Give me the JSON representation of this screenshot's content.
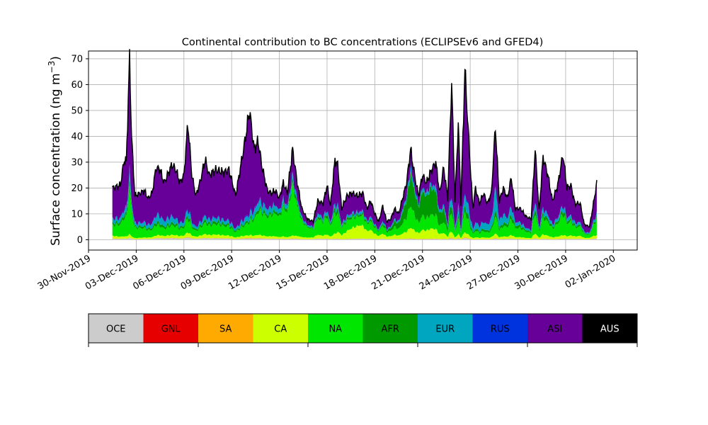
{
  "chart_data": {
    "type": "area",
    "stacked": true,
    "title": "Continental contribution to BC concentrations (ECLIPSEv6 and GFED4)",
    "ylabel_text": "Surface concentration (ng m",
    "ylabel_sup": "−3",
    "ylabel_close": ")",
    "xlabel": "",
    "x_start": "2019-12-01T12:00",
    "x_end": "2019-12-31T23:00",
    "xlim": [
      "2019-11-30T00:00",
      "2020-01-03T12:00"
    ],
    "ylim": [
      -4,
      73
    ],
    "yticks": [
      0,
      10,
      20,
      30,
      40,
      50,
      60,
      70
    ],
    "xticks": [
      "30-Nov-2019",
      "03-Dec-2019",
      "06-Dec-2019",
      "09-Dec-2019",
      "12-Dec-2019",
      "15-Dec-2019",
      "18-Dec-2019",
      "21-Dec-2019",
      "24-Dec-2019",
      "27-Dec-2019",
      "30-Dec-2019",
      "02-Jan-2020"
    ],
    "grid": true,
    "total_color": "#000000",
    "regions": [
      {
        "name": "OCE",
        "color": "#cccccc"
      },
      {
        "name": "GNL",
        "color": "#e60000"
      },
      {
        "name": "SA",
        "color": "#ffaa00"
      },
      {
        "name": "CA",
        "color": "#ccff00"
      },
      {
        "name": "NA",
        "color": "#00e600"
      },
      {
        "name": "AFR",
        "color": "#009900"
      },
      {
        "name": "EUR",
        "color": "#00a5c0"
      },
      {
        "name": "RUS",
        "color": "#0033dd"
      },
      {
        "name": "ASI",
        "color": "#660099"
      },
      {
        "name": "AUS",
        "color": "#000000"
      }
    ],
    "legend_text_colors": [
      "#000000",
      "#000000",
      "#000000",
      "#000000",
      "#000000",
      "#000000",
      "#000000",
      "#000000",
      "#000000",
      "#ffffff"
    ],
    "total_keypoints": [
      [
        "2019-12-01T12:00",
        20
      ],
      [
        "2019-12-01T18:00",
        20.5
      ],
      [
        "2019-12-02T00:00",
        21
      ],
      [
        "2019-12-02T06:00",
        31
      ],
      [
        "2019-12-02T09:00",
        30
      ],
      [
        "2019-12-02T14:00",
        70
      ],
      [
        "2019-12-02T17:00",
        40
      ],
      [
        "2019-12-02T22:00",
        17
      ],
      [
        "2019-12-03T06:00",
        18
      ],
      [
        "2019-12-03T12:00",
        19
      ],
      [
        "2019-12-03T18:00",
        16
      ],
      [
        "2019-12-04T00:00",
        18
      ],
      [
        "2019-12-04T06:00",
        28
      ],
      [
        "2019-12-04T12:00",
        27
      ],
      [
        "2019-12-04T18:00",
        22
      ],
      [
        "2019-12-05T06:00",
        29
      ],
      [
        "2019-12-05T12:00",
        27
      ],
      [
        "2019-12-05T18:00",
        22
      ],
      [
        "2019-12-06T00:00",
        25
      ],
      [
        "2019-12-06T06:00",
        45
      ],
      [
        "2019-12-06T12:00",
        25
      ],
      [
        "2019-12-06T18:00",
        17
      ],
      [
        "2019-12-07T00:00",
        22
      ],
      [
        "2019-12-07T08:00",
        31
      ],
      [
        "2019-12-07T14:00",
        25
      ],
      [
        "2019-12-08T00:00",
        27
      ],
      [
        "2019-12-08T12:00",
        26
      ],
      [
        "2019-12-08T20:00",
        27
      ],
      [
        "2019-12-09T06:00",
        17
      ],
      [
        "2019-12-09T20:00",
        38
      ],
      [
        "2019-12-10T03:00",
        50
      ],
      [
        "2019-12-10T10:00",
        35
      ],
      [
        "2019-12-10T16:00",
        38
      ],
      [
        "2019-12-10T22:00",
        28
      ],
      [
        "2019-12-11T06:00",
        19
      ],
      [
        "2019-12-11T12:00",
        18
      ],
      [
        "2019-12-11T18:00",
        19
      ],
      [
        "2019-12-12T00:00",
        16
      ],
      [
        "2019-12-12T06:00",
        22
      ],
      [
        "2019-12-12T12:00",
        18
      ],
      [
        "2019-12-12T20:00",
        35
      ],
      [
        "2019-12-13T03:00",
        22
      ],
      [
        "2019-12-13T10:00",
        12
      ],
      [
        "2019-12-13T18:00",
        8
      ],
      [
        "2019-12-14T03:00",
        7
      ],
      [
        "2019-12-14T10:00",
        15
      ],
      [
        "2019-12-14T18:00",
        14
      ],
      [
        "2019-12-15T00:00",
        21
      ],
      [
        "2019-12-15T05:00",
        13
      ],
      [
        "2019-12-15T12:00",
        31
      ],
      [
        "2019-12-15T16:00",
        29
      ],
      [
        "2019-12-15T22:00",
        12
      ],
      [
        "2019-12-16T06:00",
        17
      ],
      [
        "2019-12-16T14:00",
        18
      ],
      [
        "2019-12-16T22:00",
        17
      ],
      [
        "2019-12-17T06:00",
        18
      ],
      [
        "2019-12-17T12:00",
        12
      ],
      [
        "2019-12-17T18:00",
        15
      ],
      [
        "2019-12-18T00:00",
        10
      ],
      [
        "2019-12-18T06:00",
        7
      ],
      [
        "2019-12-18T12:00",
        13
      ],
      [
        "2019-12-18T18:00",
        7
      ],
      [
        "2019-12-19T00:00",
        8
      ],
      [
        "2019-12-19T06:00",
        12
      ],
      [
        "2019-12-19T12:00",
        10
      ],
      [
        "2019-12-20T00:00",
        22
      ],
      [
        "2019-12-20T06:00",
        35
      ],
      [
        "2019-12-20T12:00",
        25
      ],
      [
        "2019-12-20T18:00",
        17
      ],
      [
        "2019-12-21T00:00",
        25
      ],
      [
        "2019-12-21T06:00",
        22
      ],
      [
        "2019-12-21T12:00",
        26
      ],
      [
        "2019-12-21T20:00",
        30
      ],
      [
        "2019-12-22T02:00",
        18
      ],
      [
        "2019-12-22T08:00",
        28
      ],
      [
        "2019-12-22T14:00",
        16
      ],
      [
        "2019-12-22T20:00",
        61
      ],
      [
        "2019-12-23T01:00",
        15
      ],
      [
        "2019-12-23T06:00",
        45
      ],
      [
        "2019-12-23T10:00",
        14
      ],
      [
        "2019-12-23T16:00",
        66
      ],
      [
        "2019-12-23T22:00",
        38
      ],
      [
        "2019-12-24T04:00",
        12
      ],
      [
        "2019-12-24T08:00",
        20
      ],
      [
        "2019-12-24T14:00",
        14
      ],
      [
        "2019-12-24T20:00",
        18
      ],
      [
        "2019-12-25T02:00",
        14
      ],
      [
        "2019-12-25T08:00",
        18
      ],
      [
        "2019-12-25T14:00",
        44
      ],
      [
        "2019-12-25T20:00",
        15
      ],
      [
        "2019-12-26T02:00",
        20
      ],
      [
        "2019-12-26T08:00",
        16
      ],
      [
        "2019-12-26T14:00",
        24
      ],
      [
        "2019-12-26T20:00",
        12
      ],
      [
        "2019-12-27T04:00",
        12
      ],
      [
        "2019-12-27T12:00",
        9
      ],
      [
        "2019-12-27T20:00",
        8
      ],
      [
        "2019-12-28T02:00",
        35
      ],
      [
        "2019-12-28T08:00",
        11
      ],
      [
        "2019-12-28T14:00",
        32
      ],
      [
        "2019-12-28T22:00",
        24
      ],
      [
        "2019-12-29T04:00",
        15
      ],
      [
        "2019-12-29T12:00",
        21
      ],
      [
        "2019-12-29T20:00",
        33
      ],
      [
        "2019-12-30T02:00",
        20
      ],
      [
        "2019-12-30T08:00",
        21
      ],
      [
        "2019-12-30T14:00",
        14
      ],
      [
        "2019-12-30T22:00",
        14
      ],
      [
        "2019-12-31T04:00",
        6
      ],
      [
        "2019-12-31T12:00",
        5
      ],
      [
        "2019-12-31T18:00",
        14
      ],
      [
        "2019-12-31T23:00",
        22
      ]
    ],
    "fraction_keypoints": [
      {
        "t": "2019-12-01T12:00",
        "OCE": 0.02,
        "GNL": 0.0,
        "SA": 0.005,
        "CA": 0.05,
        "NA": 0.2,
        "AFR": 0.05,
        "EUR": 0.08,
        "RUS": 0.01,
        "ASI": 0.585
      },
      {
        "t": "2019-12-02T14:00",
        "OCE": 0.01,
        "GNL": 0.0,
        "SA": 0.0,
        "CA": 0.02,
        "NA": 0.25,
        "AFR": 0.04,
        "EUR": 0.05,
        "RUS": 0.01,
        "ASI": 0.62
      },
      {
        "t": "2019-12-04T12:00",
        "OCE": 0.02,
        "GNL": 0.0,
        "SA": 0.005,
        "CA": 0.04,
        "NA": 0.13,
        "AFR": 0.04,
        "EUR": 0.1,
        "RUS": 0.01,
        "ASI": 0.655
      },
      {
        "t": "2019-12-06T06:00",
        "OCE": 0.02,
        "GNL": 0.0,
        "SA": 0.005,
        "CA": 0.04,
        "NA": 0.12,
        "AFR": 0.03,
        "EUR": 0.05,
        "RUS": 0.01,
        "ASI": 0.725
      },
      {
        "t": "2019-12-08T00:00",
        "OCE": 0.02,
        "GNL": 0.0,
        "SA": 0.005,
        "CA": 0.05,
        "NA": 0.15,
        "AFR": 0.04,
        "EUR": 0.05,
        "RUS": 0.01,
        "ASI": 0.675
      },
      {
        "t": "2019-12-10T03:00",
        "OCE": 0.01,
        "GNL": 0.0,
        "SA": 0.005,
        "CA": 0.02,
        "NA": 0.1,
        "AFR": 0.02,
        "EUR": 0.04,
        "RUS": 0.01,
        "ASI": 0.795
      },
      {
        "t": "2019-12-11T12:00",
        "OCE": 0.02,
        "GNL": 0.0,
        "SA": 0.005,
        "CA": 0.05,
        "NA": 0.45,
        "AFR": 0.06,
        "EUR": 0.12,
        "RUS": 0.01,
        "ASI": 0.285
      },
      {
        "t": "2019-12-12T20:00",
        "OCE": 0.01,
        "GNL": 0.0,
        "SA": 0.005,
        "CA": 0.03,
        "NA": 0.55,
        "AFR": 0.05,
        "EUR": 0.06,
        "RUS": 0.01,
        "ASI": 0.285
      },
      {
        "t": "2019-12-14T06:00",
        "OCE": 0.03,
        "GNL": 0.0,
        "SA": 0.005,
        "CA": 0.1,
        "NA": 0.45,
        "AFR": 0.05,
        "EUR": 0.08,
        "RUS": 0.01,
        "ASI": 0.275
      },
      {
        "t": "2019-12-15T12:00",
        "OCE": 0.01,
        "GNL": 0.0,
        "SA": 0.005,
        "CA": 0.06,
        "NA": 0.25,
        "AFR": 0.06,
        "EUR": 0.05,
        "RUS": 0.01,
        "ASI": 0.555
      },
      {
        "t": "2019-12-17T00:00",
        "OCE": 0.02,
        "GNL": 0.0,
        "SA": 0.005,
        "CA": 0.3,
        "NA": 0.2,
        "AFR": 0.05,
        "EUR": 0.05,
        "RUS": 0.01,
        "ASI": 0.365
      },
      {
        "t": "2019-12-18T12:00",
        "OCE": 0.03,
        "GNL": 0.0,
        "SA": 0.005,
        "CA": 0.15,
        "NA": 0.25,
        "AFR": 0.06,
        "EUR": 0.06,
        "RUS": 0.01,
        "ASI": 0.435
      },
      {
        "t": "2019-12-20T06:00",
        "OCE": 0.01,
        "GNL": 0.0,
        "SA": 0.005,
        "CA": 0.12,
        "NA": 0.25,
        "AFR": 0.35,
        "EUR": 0.06,
        "RUS": 0.01,
        "ASI": 0.195
      },
      {
        "t": "2019-12-21T12:00",
        "OCE": 0.01,
        "GNL": 0.0,
        "SA": 0.005,
        "CA": 0.15,
        "NA": 0.2,
        "AFR": 0.4,
        "EUR": 0.05,
        "RUS": 0.01,
        "ASI": 0.175
      },
      {
        "t": "2019-12-22T20:00",
        "OCE": 0.01,
        "GNL": 0.0,
        "SA": 0.005,
        "CA": 0.04,
        "NA": 0.13,
        "AFR": 0.05,
        "EUR": 0.05,
        "RUS": 0.01,
        "ASI": 0.705
      },
      {
        "t": "2019-12-23T16:00",
        "OCE": 0.01,
        "GNL": 0.0,
        "SA": 0.005,
        "CA": 0.03,
        "NA": 0.12,
        "AFR": 0.04,
        "EUR": 0.07,
        "RUS": 0.01,
        "ASI": 0.715
      },
      {
        "t": "2019-12-25T14:00",
        "OCE": 0.01,
        "GNL": 0.0,
        "SA": 0.005,
        "CA": 0.04,
        "NA": 0.15,
        "AFR": 0.05,
        "EUR": 0.2,
        "RUS": 0.01,
        "ASI": 0.535
      },
      {
        "t": "2019-12-27T00:00",
        "OCE": 0.02,
        "GNL": 0.0,
        "SA": 0.005,
        "CA": 0.06,
        "NA": 0.3,
        "AFR": 0.08,
        "EUR": 0.1,
        "RUS": 0.01,
        "ASI": 0.425
      },
      {
        "t": "2019-12-28T14:00",
        "OCE": 0.01,
        "GNL": 0.0,
        "SA": 0.005,
        "CA": 0.05,
        "NA": 0.2,
        "AFR": 0.05,
        "EUR": 0.06,
        "RUS": 0.01,
        "ASI": 0.615
      },
      {
        "t": "2019-12-29T20:00",
        "OCE": 0.01,
        "GNL": 0.0,
        "SA": 0.005,
        "CA": 0.04,
        "NA": 0.25,
        "AFR": 0.05,
        "EUR": 0.05,
        "RUS": 0.01,
        "ASI": 0.585
      },
      {
        "t": "2019-12-31T12:00",
        "OCE": 0.03,
        "GNL": 0.0,
        "SA": 0.005,
        "CA": 0.1,
        "NA": 0.25,
        "AFR": 0.05,
        "EUR": 0.08,
        "RUS": 0.01,
        "ASI": 0.475
      },
      {
        "t": "2019-12-31T23:00",
        "OCE": 0.02,
        "GNL": 0.0,
        "SA": 0.005,
        "CA": 0.05,
        "NA": 0.3,
        "AFR": 0.04,
        "EUR": 0.05,
        "RUS": 0.01,
        "ASI": 0.525
      }
    ]
  }
}
